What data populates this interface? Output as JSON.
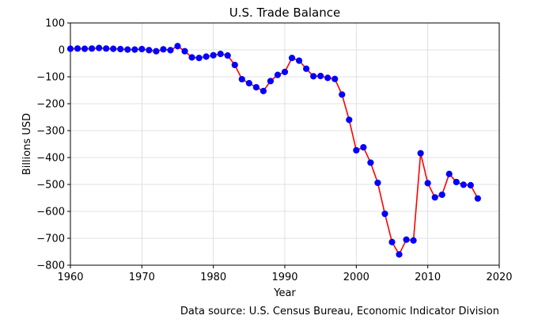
{
  "chart_data": {
    "type": "line",
    "title": "U.S. Trade Balance",
    "xlabel": "Year",
    "ylabel": "Billions USD",
    "xlim": [
      1960,
      2020
    ],
    "ylim": [
      -800,
      100
    ],
    "xticks": [
      1960,
      1970,
      1980,
      1990,
      2000,
      2010,
      2020
    ],
    "yticks": [
      100,
      0,
      -100,
      -200,
      -300,
      -400,
      -500,
      -600,
      -700,
      -800
    ],
    "grid": true,
    "line_color": "#ff0000",
    "marker_color": "#0000ff",
    "source_note": "Data source: U.S. Census Bureau, Economic Indicator Division",
    "x": [
      1960,
      1961,
      1962,
      1963,
      1964,
      1965,
      1966,
      1967,
      1968,
      1969,
      1970,
      1971,
      1972,
      1973,
      1974,
      1975,
      1976,
      1977,
      1978,
      1979,
      1980,
      1981,
      1982,
      1983,
      1984,
      1985,
      1986,
      1987,
      1988,
      1989,
      1990,
      1991,
      1992,
      1993,
      1994,
      1995,
      1996,
      1997,
      1998,
      1999,
      2000,
      2001,
      2002,
      2003,
      2004,
      2005,
      2006,
      2007,
      2008,
      2009,
      2010,
      2011,
      2012,
      2013,
      2014,
      2015,
      2016,
      2017
    ],
    "y": [
      4,
      5,
      4,
      5,
      7,
      5,
      4,
      3,
      1,
      1,
      3,
      -1,
      -5,
      2,
      -1,
      14,
      -5,
      -28,
      -30,
      -25,
      -20,
      -15,
      -21,
      -56,
      -109,
      -124,
      -139,
      -153,
      -116,
      -93,
      -82,
      -30,
      -40,
      -70,
      -98,
      -97,
      -104,
      -108,
      -166,
      -260,
      -373,
      -362,
      -419,
      -494,
      -609,
      -714,
      -760,
      -705,
      -708,
      -384,
      -495,
      -548,
      -538,
      -461,
      -491,
      -501,
      -503,
      -552
    ]
  }
}
